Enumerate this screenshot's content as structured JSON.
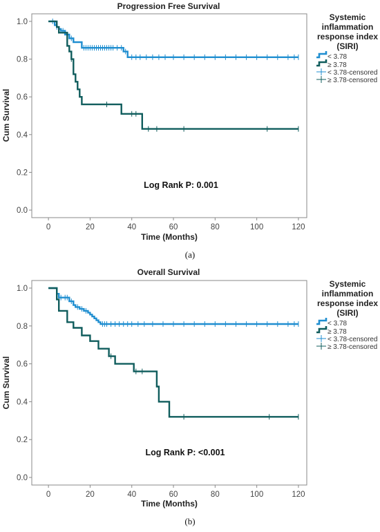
{
  "chart_data": [
    {
      "type": "line",
      "panel_label": "(a)",
      "title": "Progression Free Survival",
      "xlabel": "Time (Months)",
      "ylabel": "Cum Survival",
      "xlim": [
        -8,
        124
      ],
      "ylim": [
        -0.04,
        1.04
      ],
      "x_ticks": [
        0,
        20,
        40,
        60,
        80,
        100,
        120
      ],
      "y_ticks": [
        "0.0",
        "0.2",
        "0.4",
        "0.6",
        "0.8",
        "1.0"
      ],
      "annotation": "Log Rank P: 0.001",
      "legend": {
        "title": [
          "Systemic",
          "inflammation",
          "response index",
          "(SIRI)"
        ],
        "entries": [
          "< 3.78",
          "≥ 3.78",
          "< 3.78-censored",
          "≥ 3.78-censored"
        ]
      },
      "series": [
        {
          "name": "< 3.78",
          "color": "#1f8ed0",
          "steps": [
            [
              0,
              1.0
            ],
            [
              3,
              0.98
            ],
            [
              4,
              0.97
            ],
            [
              5,
              0.96
            ],
            [
              6,
              0.95
            ],
            [
              8,
              0.93
            ],
            [
              10,
              0.91
            ],
            [
              12,
              0.89
            ],
            [
              16,
              0.86
            ],
            [
              36,
              0.84
            ],
            [
              38,
              0.81
            ],
            [
              120,
              0.81
            ]
          ],
          "censored": [
            [
              2,
              1.0
            ],
            [
              4,
              0.97
            ],
            [
              7,
              0.95
            ],
            [
              9,
              0.93
            ],
            [
              11,
              0.91
            ],
            [
              17,
              0.86
            ],
            [
              18,
              0.86
            ],
            [
              19,
              0.86
            ],
            [
              20,
              0.86
            ],
            [
              21,
              0.86
            ],
            [
              22,
              0.86
            ],
            [
              23,
              0.86
            ],
            [
              24,
              0.86
            ],
            [
              25,
              0.86
            ],
            [
              26,
              0.86
            ],
            [
              27,
              0.86
            ],
            [
              28,
              0.86
            ],
            [
              29,
              0.86
            ],
            [
              30,
              0.86
            ],
            [
              31,
              0.86
            ],
            [
              33,
              0.86
            ],
            [
              35,
              0.86
            ],
            [
              37,
              0.84
            ],
            [
              40,
              0.81
            ],
            [
              42,
              0.81
            ],
            [
              44,
              0.81
            ],
            [
              47,
              0.81
            ],
            [
              50,
              0.81
            ],
            [
              53,
              0.81
            ],
            [
              56,
              0.81
            ],
            [
              60,
              0.81
            ],
            [
              65,
              0.81
            ],
            [
              70,
              0.81
            ],
            [
              75,
              0.81
            ],
            [
              80,
              0.81
            ],
            [
              85,
              0.81
            ],
            [
              90,
              0.81
            ],
            [
              95,
              0.81
            ],
            [
              100,
              0.81
            ],
            [
              105,
              0.81
            ],
            [
              110,
              0.81
            ],
            [
              115,
              0.81
            ],
            [
              118,
              0.81
            ],
            [
              120,
              0.81
            ]
          ]
        },
        {
          "name": "≥ 3.78",
          "color": "#0f5c5c",
          "steps": [
            [
              0,
              1.0
            ],
            [
              4,
              0.97
            ],
            [
              5,
              0.94
            ],
            [
              9,
              0.87
            ],
            [
              10,
              0.84
            ],
            [
              11,
              0.8
            ],
            [
              12,
              0.72
            ],
            [
              13,
              0.68
            ],
            [
              14,
              0.64
            ],
            [
              15,
              0.6
            ],
            [
              16,
              0.56
            ],
            [
              35,
              0.51
            ],
            [
              45,
              0.43
            ],
            [
              120,
              0.43
            ]
          ],
          "censored": [
            [
              11,
              0.8
            ],
            [
              28,
              0.56
            ],
            [
              40,
              0.51
            ],
            [
              42,
              0.51
            ],
            [
              48,
              0.43
            ],
            [
              52,
              0.43
            ],
            [
              65,
              0.43
            ],
            [
              105,
              0.43
            ],
            [
              120,
              0.43
            ]
          ]
        }
      ]
    },
    {
      "type": "line",
      "panel_label": "(b)",
      "title": "Overall Survival",
      "xlabel": "Time (Months)",
      "ylabel": "Cum Survival",
      "xlim": [
        -8,
        124
      ],
      "ylim": [
        -0.04,
        1.04
      ],
      "x_ticks": [
        0,
        20,
        40,
        60,
        80,
        100,
        120
      ],
      "y_ticks": [
        "0.0",
        "0.2",
        "0.4",
        "0.6",
        "0.8",
        "1.0"
      ],
      "annotation": "Log Rank P: <0.001",
      "legend": {
        "title": [
          "Systemic",
          "inflammation",
          "response index",
          "(SIRI)"
        ],
        "entries": [
          "< 3.78",
          "≥ 3.78",
          "< 3.78-censored",
          "≥ 3.78-censored"
        ]
      },
      "series": [
        {
          "name": "< 3.78",
          "color": "#1f8ed0",
          "steps": [
            [
              0,
              1.0
            ],
            [
              4,
              0.97
            ],
            [
              5,
              0.95
            ],
            [
              10,
              0.93
            ],
            [
              12,
              0.91
            ],
            [
              13,
              0.9
            ],
            [
              15,
              0.89
            ],
            [
              17,
              0.88
            ],
            [
              19,
              0.87
            ],
            [
              20,
              0.86
            ],
            [
              21,
              0.85
            ],
            [
              22,
              0.84
            ],
            [
              23,
              0.83
            ],
            [
              24,
              0.82
            ],
            [
              25,
              0.81
            ],
            [
              120,
              0.81
            ]
          ],
          "censored": [
            [
              6,
              0.95
            ],
            [
              8,
              0.95
            ],
            [
              9,
              0.95
            ],
            [
              11,
              0.93
            ],
            [
              14,
              0.9
            ],
            [
              16,
              0.89
            ],
            [
              18,
              0.88
            ],
            [
              26,
              0.81
            ],
            [
              27,
              0.81
            ],
            [
              28,
              0.81
            ],
            [
              30,
              0.81
            ],
            [
              32,
              0.81
            ],
            [
              34,
              0.81
            ],
            [
              36,
              0.81
            ],
            [
              38,
              0.81
            ],
            [
              40,
              0.81
            ],
            [
              43,
              0.81
            ],
            [
              46,
              0.81
            ],
            [
              50,
              0.81
            ],
            [
              55,
              0.81
            ],
            [
              60,
              0.81
            ],
            [
              65,
              0.81
            ],
            [
              70,
              0.81
            ],
            [
              75,
              0.81
            ],
            [
              80,
              0.81
            ],
            [
              85,
              0.81
            ],
            [
              90,
              0.81
            ],
            [
              95,
              0.81
            ],
            [
              100,
              0.81
            ],
            [
              105,
              0.81
            ],
            [
              110,
              0.81
            ],
            [
              115,
              0.81
            ],
            [
              118,
              0.81
            ],
            [
              120,
              0.81
            ]
          ]
        },
        {
          "name": "≥ 3.78",
          "color": "#0f5c5c",
          "steps": [
            [
              0,
              1.0
            ],
            [
              4,
              0.94
            ],
            [
              5,
              0.88
            ],
            [
              9,
              0.82
            ],
            [
              12,
              0.79
            ],
            [
              16,
              0.75
            ],
            [
              20,
              0.72
            ],
            [
              24,
              0.68
            ],
            [
              29,
              0.64
            ],
            [
              32,
              0.6
            ],
            [
              41,
              0.56
            ],
            [
              52,
              0.48
            ],
            [
              53,
              0.4
            ],
            [
              58,
              0.32
            ],
            [
              120,
              0.32
            ]
          ],
          "censored": [
            [
              30,
              0.64
            ],
            [
              42,
              0.56
            ],
            [
              45,
              0.56
            ],
            [
              65,
              0.32
            ],
            [
              106,
              0.32
            ],
            [
              120,
              0.32
            ]
          ]
        }
      ]
    }
  ]
}
